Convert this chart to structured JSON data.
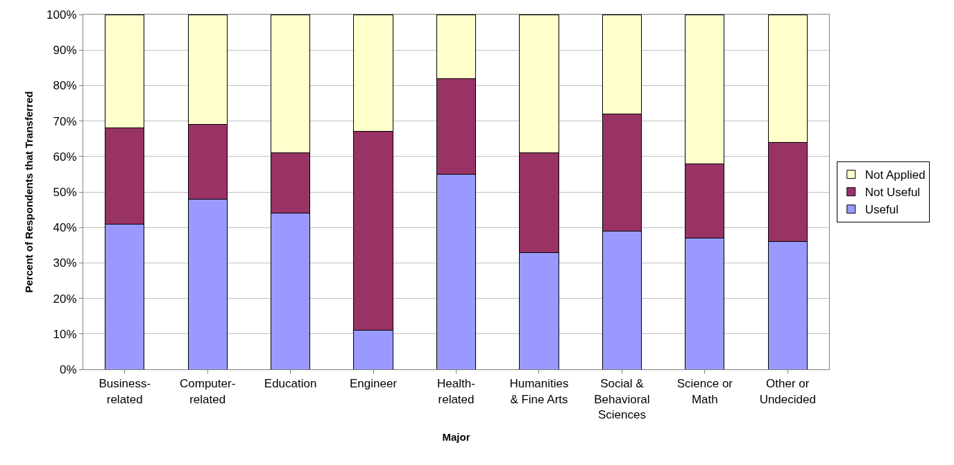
{
  "chart_data": {
    "type": "bar",
    "stacked": true,
    "xlabel": "Major",
    "ylabel": "Percent of Respondents that Transferred",
    "categories": [
      "Business-\nrelated",
      "Computer-\nrelated",
      "Education",
      "Engineer",
      "Health-\nrelated",
      "Humanities\n& Fine Arts",
      "Social &\nBehavioral\nSciences",
      "Science or\nMath",
      "Other or\nUndecided"
    ],
    "series": [
      {
        "name": "Useful",
        "color": "#9999ff",
        "values": [
          41,
          48,
          44,
          11,
          55,
          33,
          39,
          37,
          36
        ]
      },
      {
        "name": "Not Useful",
        "color": "#993366",
        "values": [
          27,
          21,
          17,
          56,
          27,
          28,
          33,
          21,
          28
        ]
      },
      {
        "name": "Not Applied",
        "color": "#ffffcc",
        "values": [
          32,
          31,
          39,
          33,
          18,
          39,
          28,
          42,
          36
        ]
      }
    ],
    "ylim": [
      0,
      100
    ],
    "yticks": [
      {
        "value": 0,
        "label": "0%"
      },
      {
        "value": 10,
        "label": "10%"
      },
      {
        "value": 20,
        "label": "20%"
      },
      {
        "value": 30,
        "label": "30%"
      },
      {
        "value": 40,
        "label": "40%"
      },
      {
        "value": 50,
        "label": "50%"
      },
      {
        "value": 60,
        "label": "60%"
      },
      {
        "value": 70,
        "label": "70%"
      },
      {
        "value": 80,
        "label": "80%"
      },
      {
        "value": 90,
        "label": "90%"
      },
      {
        "value": 100,
        "label": "100%"
      }
    ],
    "grid": "y",
    "legend": "right"
  }
}
